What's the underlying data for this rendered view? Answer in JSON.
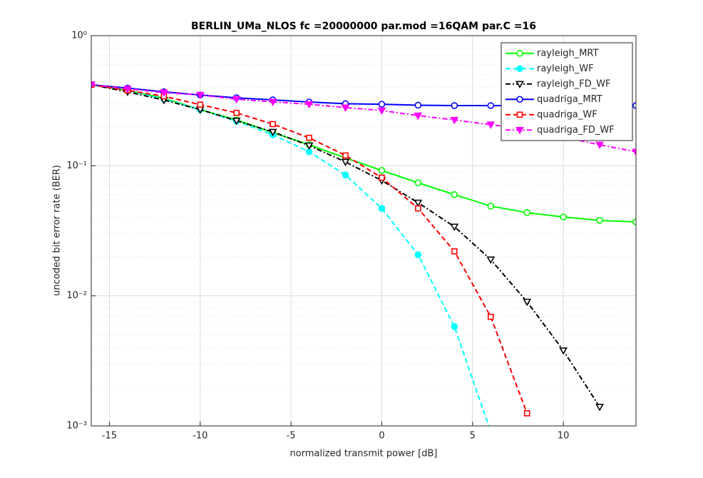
{
  "chart_data": {
    "type": "line",
    "title": "BERLIN_UMa_NLOS fc =20000000 par.mod =16QAM par.C =16",
    "xlabel": "normalized transmit power [dB]",
    "ylabel": "uncoded bit error rate (BER)",
    "x": [
      -16,
      -14,
      -12,
      -10,
      -8,
      -6,
      -4,
      -2,
      0,
      2,
      4,
      6,
      8,
      10,
      12,
      14
    ],
    "xlim": [
      -16,
      14
    ],
    "xticks": [
      -15,
      -10,
      -5,
      0,
      5,
      10
    ],
    "ylim": [
      0.001,
      1
    ],
    "yticks": [
      {
        "value": 0.001,
        "label": "10⁻³"
      },
      {
        "value": 0.01,
        "label": "10⁻²"
      },
      {
        "value": 0.1,
        "label": "10⁻¹"
      },
      {
        "value": 1,
        "label": "10⁰"
      }
    ],
    "log_y": true,
    "grid": true,
    "minor_grid": true,
    "legend": "upper right",
    "series": [
      {
        "name": "rayleigh_MRT",
        "color": "#00ff00",
        "dash": "solid",
        "marker": "circle",
        "values": [
          0.42,
          0.38,
          0.33,
          0.27,
          0.225,
          0.18,
          0.145,
          0.115,
          0.092,
          0.074,
          0.06,
          0.049,
          0.0436,
          0.0404,
          0.038,
          0.037
        ]
      },
      {
        "name": "rayleigh_WF",
        "color": "#00ffff",
        "dash": "dashed",
        "marker": "filled-circle",
        "values": [
          0.42,
          0.38,
          0.325,
          0.27,
          0.22,
          0.173,
          0.128,
          0.085,
          0.047,
          0.0207,
          0.0058,
          0.0009,
          null,
          null,
          null,
          null
        ]
      },
      {
        "name": "rayleigh_FD_WF",
        "color": "#000000",
        "dash": "dashdot",
        "marker": "triangle-down",
        "values": [
          0.42,
          0.37,
          0.32,
          0.27,
          0.222,
          0.182,
          0.143,
          0.107,
          0.077,
          0.052,
          0.034,
          0.019,
          0.009,
          0.0038,
          0.0014,
          null
        ]
      },
      {
        "name": "quadriga_MRT",
        "color": "#0000ff",
        "dash": "solid",
        "marker": "circle",
        "values": [
          0.42,
          0.395,
          0.37,
          0.35,
          0.333,
          0.321,
          0.309,
          0.3,
          0.297,
          0.292,
          0.29,
          0.29,
          0.29,
          0.29,
          0.29,
          0.29
        ]
      },
      {
        "name": "quadriga_WF",
        "color": "#ff0000",
        "dash": "dashed",
        "marker": "square",
        "values": [
          0.42,
          0.38,
          0.342,
          0.295,
          0.255,
          0.209,
          0.164,
          0.12,
          0.081,
          0.047,
          0.022,
          0.0069,
          0.00125,
          null,
          null,
          null
        ]
      },
      {
        "name": "quadriga_FD_WF",
        "color": "#ff00ff",
        "dash": "dashdot",
        "marker": "filled-triangle-down",
        "values": [
          0.42,
          0.39,
          0.365,
          0.35,
          0.325,
          0.31,
          0.297,
          0.28,
          0.266,
          0.243,
          0.225,
          0.207,
          0.191,
          0.166,
          0.145,
          0.128
        ]
      }
    ]
  }
}
